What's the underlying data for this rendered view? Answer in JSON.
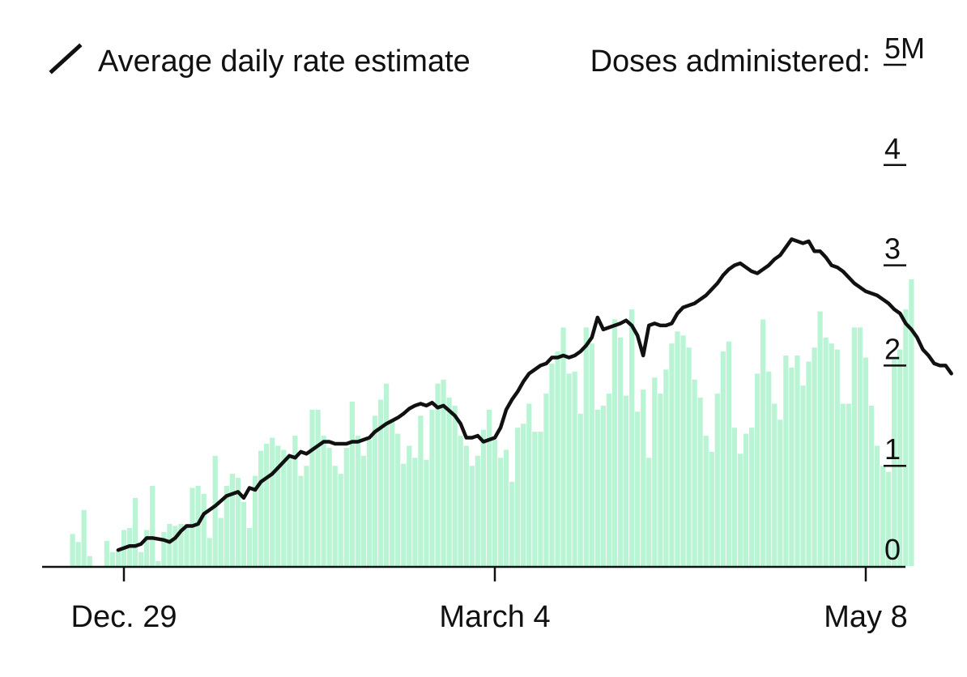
{
  "chart_data": {
    "type": "bar",
    "legend": {
      "line_label": "Average daily rate estimate",
      "bars_label": "Doses administered:"
    },
    "colors": {
      "bars": "#b9f5d4",
      "line": "#111111",
      "axis": "#111111",
      "text": "#111111"
    },
    "y_unit": "M",
    "y_ticks": [
      0,
      1,
      2,
      3,
      4,
      5
    ],
    "ylim": [
      0,
      5
    ],
    "x_ticks": [
      {
        "day": 0,
        "label": "Dec. 29"
      },
      {
        "day": 65,
        "label": "March 4"
      },
      {
        "day": 130,
        "label": "May 8"
      }
    ],
    "bars_start_day": -9,
    "bars": [
      0.32,
      0.24,
      0.56,
      0.1,
      0,
      0,
      0.25,
      0.14,
      0.16,
      0.36,
      0.38,
      0.68,
      0.14,
      0.36,
      0.8,
      0.05,
      0.34,
      0.42,
      0.4,
      0.42,
      0.42,
      0.78,
      0.8,
      0.72,
      0.28,
      1.1,
      0.48,
      0.8,
      0.92,
      0.88,
      0.64,
      0.38,
      0.9,
      1.15,
      1.22,
      1.28,
      1.2,
      1.16,
      1.1,
      1.3,
      0.9,
      1.0,
      1.56,
      1.56,
      1.3,
      1.18,
      1.0,
      0.92,
      1.18,
      1.64,
      1.3,
      1.1,
      1.26,
      1.5,
      1.66,
      1.82,
      1.46,
      1.32,
      1.02,
      1.2,
      1.08,
      1.5,
      1.06,
      1.56,
      1.82,
      1.86,
      1.68,
      1.6,
      1.3,
      1.2,
      1.0,
      1.1,
      1.36,
      1.56,
      1.26,
      1.08,
      1.16,
      0.84,
      1.38,
      1.42,
      1.62,
      1.34,
      1.34,
      1.72,
      2.02,
      2.14,
      2.38,
      1.92,
      1.94,
      1.52,
      2.38,
      2.22,
      1.56,
      1.6,
      1.72,
      2.46,
      2.28,
      1.7,
      2.56,
      1.54,
      1.76,
      1.08,
      1.88,
      1.72,
      1.96,
      2.22,
      2.34,
      2.3,
      2.18,
      1.86,
      1.68,
      1.3,
      1.14,
      1.72,
      2.14,
      2.24,
      1.38,
      1.12,
      1.32,
      1.38,
      1.92,
      2.46,
      1.94,
      1.62,
      1.46,
      2.1,
      1.98,
      2.1,
      1.8,
      2.04,
      2.18,
      2.54,
      2.28,
      2.22,
      2.16,
      1.62,
      1.62,
      2.38,
      2.38,
      2.08,
      1.6,
      1.2,
      1.0,
      0.94,
      2.06,
      2.16,
      2.56,
      2.86
    ],
    "line_start_day": -1,
    "line": [
      0.16,
      0.18,
      0.2,
      0.2,
      0.22,
      0.28,
      0.28,
      0.27,
      0.26,
      0.24,
      0.28,
      0.35,
      0.4,
      0.4,
      0.42,
      0.52,
      0.56,
      0.6,
      0.65,
      0.7,
      0.72,
      0.74,
      0.68,
      0.78,
      0.76,
      0.84,
      0.88,
      0.92,
      0.98,
      1.04,
      1.1,
      1.08,
      1.14,
      1.12,
      1.16,
      1.2,
      1.24,
      1.24,
      1.22,
      1.22,
      1.22,
      1.24,
      1.24,
      1.26,
      1.28,
      1.34,
      1.38,
      1.42,
      1.45,
      1.48,
      1.52,
      1.57,
      1.6,
      1.62,
      1.6,
      1.63,
      1.58,
      1.6,
      1.55,
      1.5,
      1.42,
      1.28,
      1.28,
      1.3,
      1.24,
      1.26,
      1.28,
      1.38,
      1.56,
      1.66,
      1.74,
      1.84,
      1.92,
      1.96,
      2.0,
      2.02,
      2.08,
      2.08,
      2.1,
      2.08,
      2.1,
      2.14,
      2.2,
      2.28,
      2.48,
      2.36,
      2.38,
      2.4,
      2.42,
      2.45,
      2.4,
      2.3,
      2.1,
      2.4,
      2.42,
      2.4,
      2.4,
      2.42,
      2.52,
      2.58,
      2.6,
      2.62,
      2.66,
      2.7,
      2.76,
      2.82,
      2.9,
      2.96,
      3.0,
      3.02,
      2.98,
      2.94,
      2.92,
      2.96,
      3.0,
      3.06,
      3.1,
      3.18,
      3.26,
      3.24,
      3.22,
      3.24,
      3.14,
      3.14,
      3.08,
      3.0,
      2.98,
      2.94,
      2.88,
      2.82,
      2.78,
      2.74,
      2.72,
      2.7,
      2.66,
      2.62,
      2.56,
      2.52,
      2.42,
      2.36,
      2.28,
      2.16,
      2.1,
      2.02,
      2.0,
      2.0,
      1.92
    ]
  }
}
